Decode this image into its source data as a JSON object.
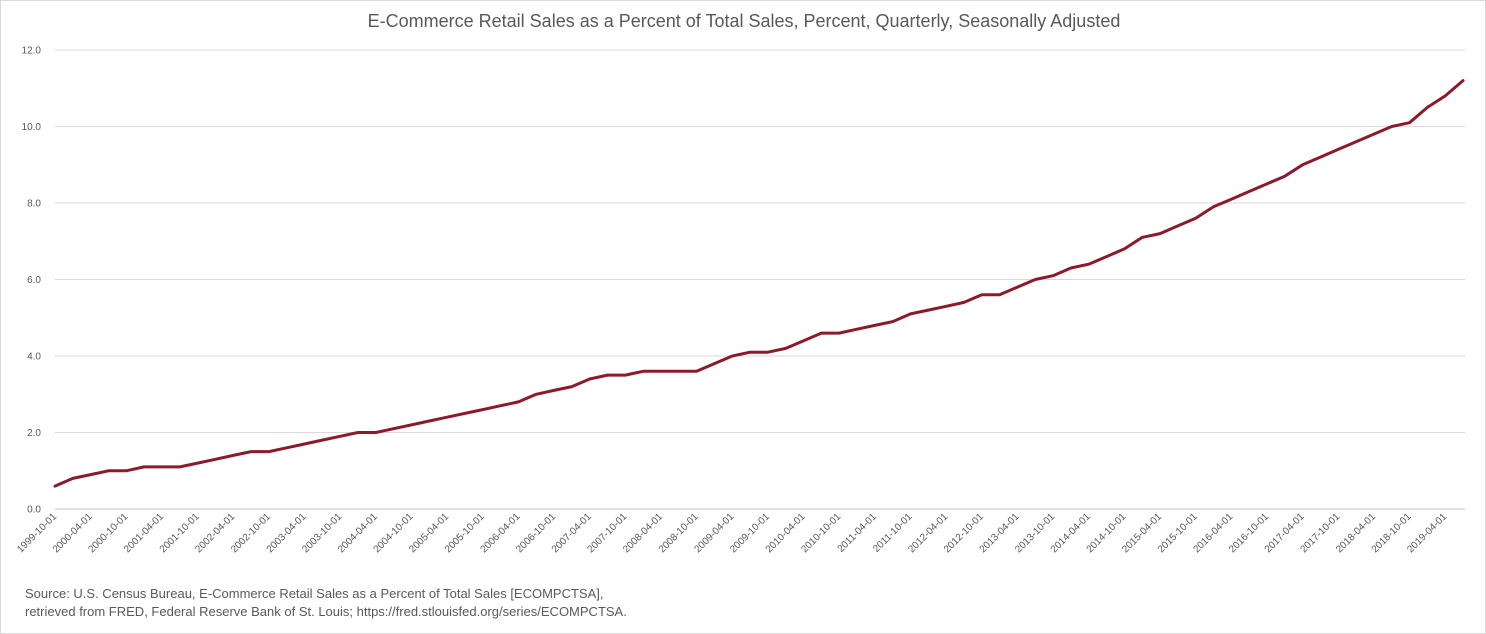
{
  "chart_data": {
    "type": "line",
    "title": "E-Commerce Retail Sales as a Percent of Total Sales, Percent, Quarterly, Seasonally Adjusted",
    "xlabel": "",
    "ylabel": "",
    "ylim": [
      0,
      12
    ],
    "y_ticks": [
      "0.0",
      "2.0",
      "4.0",
      "6.0",
      "8.0",
      "10.0",
      "12.0"
    ],
    "grid": true,
    "legend": "none",
    "series_color": "#8b1a2b",
    "x_tick_labels": [
      "1999-10-01",
      "2000-04-01",
      "2000-10-01",
      "2001-04-01",
      "2001-10-01",
      "2002-04-01",
      "2002-10-01",
      "2003-04-01",
      "2003-10-01",
      "2004-04-01",
      "2004-10-01",
      "2005-04-01",
      "2005-10-01",
      "2006-04-01",
      "2006-10-01",
      "2007-04-01",
      "2007-10-01",
      "2008-04-01",
      "2008-10-01",
      "2009-04-01",
      "2009-10-01",
      "2010-04-01",
      "2010-10-01",
      "2011-04-01",
      "2011-10-01",
      "2012-04-01",
      "2012-10-01",
      "2013-04-01",
      "2013-10-01",
      "2014-04-01",
      "2014-10-01",
      "2015-04-01",
      "2015-10-01",
      "2016-04-01",
      "2016-10-01",
      "2017-04-01",
      "2017-10-01",
      "2018-04-01",
      "2018-10-01",
      "2019-04-01"
    ],
    "x": [
      "1999-10-01",
      "2000-01-01",
      "2000-04-01",
      "2000-07-01",
      "2000-10-01",
      "2001-01-01",
      "2001-04-01",
      "2001-07-01",
      "2001-10-01",
      "2002-01-01",
      "2002-04-01",
      "2002-07-01",
      "2002-10-01",
      "2003-01-01",
      "2003-04-01",
      "2003-07-01",
      "2003-10-01",
      "2004-01-01",
      "2004-04-01",
      "2004-07-01",
      "2004-10-01",
      "2005-01-01",
      "2005-04-01",
      "2005-07-01",
      "2005-10-01",
      "2006-01-01",
      "2006-04-01",
      "2006-07-01",
      "2006-10-01",
      "2007-01-01",
      "2007-04-01",
      "2007-07-01",
      "2007-10-01",
      "2008-01-01",
      "2008-04-01",
      "2008-07-01",
      "2008-10-01",
      "2009-01-01",
      "2009-04-01",
      "2009-07-01",
      "2009-10-01",
      "2010-01-01",
      "2010-04-01",
      "2010-07-01",
      "2010-10-01",
      "2011-01-01",
      "2011-04-01",
      "2011-07-01",
      "2011-10-01",
      "2012-01-01",
      "2012-04-01",
      "2012-07-01",
      "2012-10-01",
      "2013-01-01",
      "2013-04-01",
      "2013-07-01",
      "2013-10-01",
      "2014-01-01",
      "2014-04-01",
      "2014-07-01",
      "2014-10-01",
      "2015-01-01",
      "2015-04-01",
      "2015-07-01",
      "2015-10-01",
      "2016-01-01",
      "2016-04-01",
      "2016-07-01",
      "2016-10-01",
      "2017-01-01",
      "2017-04-01",
      "2017-07-01",
      "2017-10-01",
      "2018-01-01",
      "2018-04-01",
      "2018-07-01",
      "2018-10-01",
      "2019-01-01",
      "2019-04-01",
      "2019-07-01"
    ],
    "series": [
      {
        "values": [
          0.6,
          0.8,
          0.9,
          1.0,
          1.0,
          1.1,
          1.1,
          1.1,
          1.2,
          1.3,
          1.4,
          1.5,
          1.5,
          1.6,
          1.7,
          1.8,
          1.9,
          2.0,
          2.0,
          2.1,
          2.2,
          2.3,
          2.4,
          2.5,
          2.6,
          2.7,
          2.8,
          3.0,
          3.1,
          3.2,
          3.4,
          3.5,
          3.5,
          3.6,
          3.6,
          3.6,
          3.6,
          3.8,
          4.0,
          4.1,
          4.1,
          4.2,
          4.4,
          4.6,
          4.6,
          4.7,
          4.8,
          4.9,
          5.1,
          5.2,
          5.3,
          5.4,
          5.6,
          5.6,
          5.8,
          6.0,
          6.1,
          6.3,
          6.4,
          6.6,
          6.8,
          7.1,
          7.2,
          7.4,
          7.6,
          7.9,
          8.1,
          8.3,
          8.5,
          8.7,
          9.0,
          9.2,
          9.4,
          9.6,
          9.8,
          10.0,
          10.1,
          10.5,
          10.8,
          11.2
        ]
      }
    ]
  },
  "source": {
    "line1": "Source: U.S. Census Bureau, E-Commerce Retail Sales as a Percent of Total Sales [ECOMPCTSA],",
    "line2": "retrieved from FRED, Federal Reserve Bank of St. Louis; https://fred.stlouisfed.org/series/ECOMPCTSA."
  }
}
